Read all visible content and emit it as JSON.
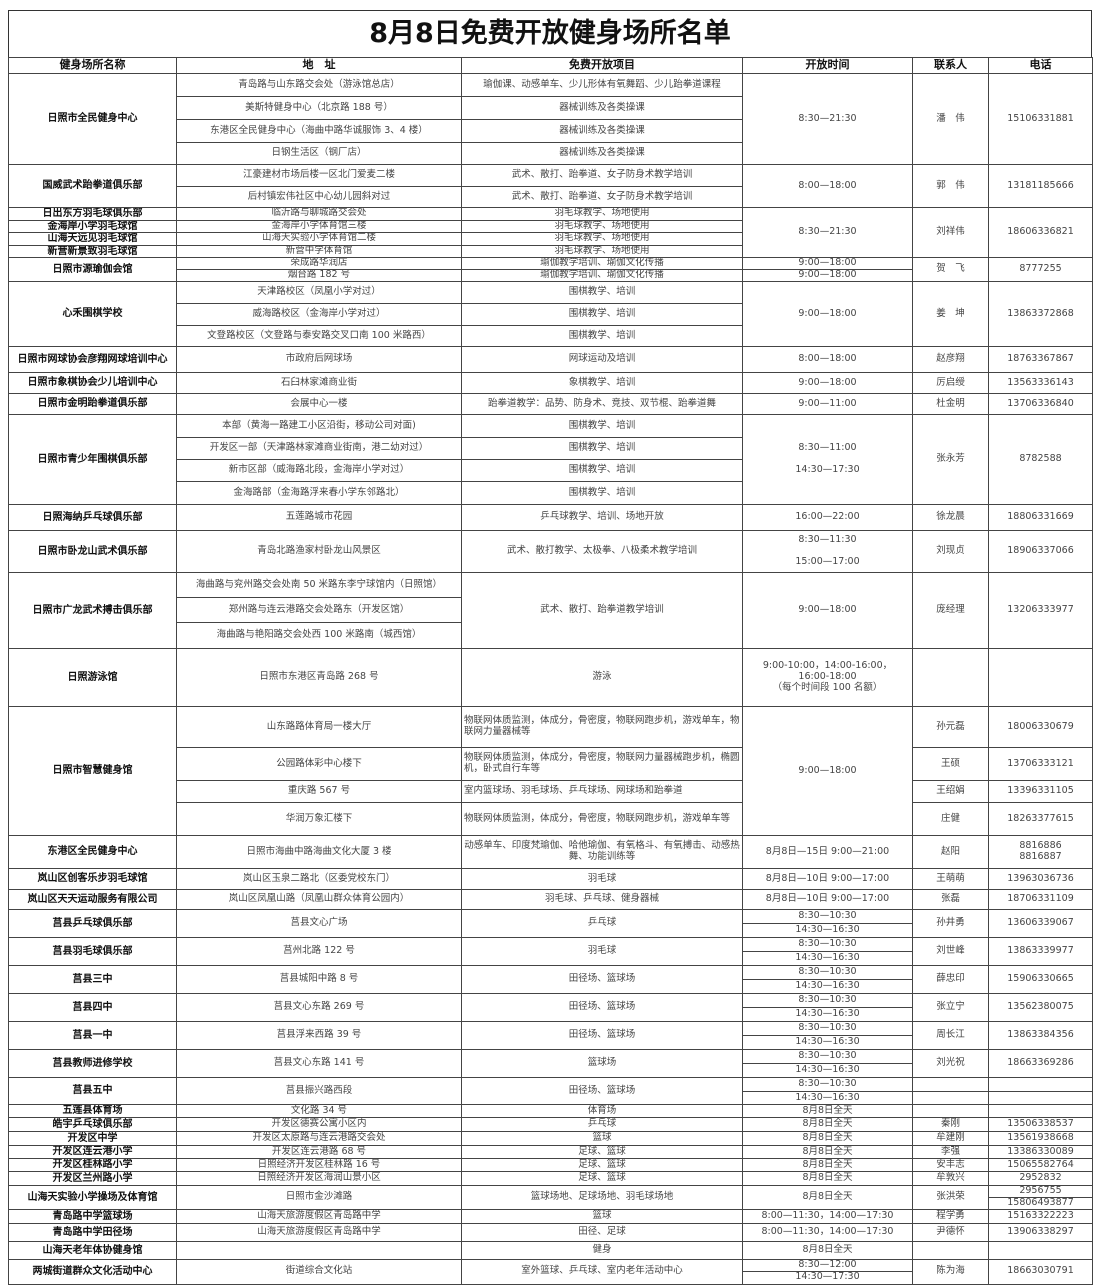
{
  "title": "8月8日免费开放健身场所名单",
  "headers": [
    "健身场所名称",
    "地　址",
    "免费开放项目",
    "开放时间",
    "联系人",
    "电话"
  ],
  "rows": [
    [
      {
        "k": "name",
        "t": "日照市全民健身中心",
        "rs": 4
      },
      {
        "k": "addr",
        "t": "青岛路与山东路交会处（游泳馆总店）"
      },
      {
        "k": "item",
        "t": "瑜伽课、动感单车、少儿形体有氧舞蹈、少儿跆拳道课程"
      },
      {
        "k": "time",
        "t": "8:30—21:30",
        "rs": 4
      },
      {
        "k": "contact",
        "t": "潘　伟",
        "rs": 4
      },
      {
        "k": "phone",
        "t": "15106331881",
        "rs": 4
      }
    ],
    [
      {
        "k": "addr",
        "t": "美斯特健身中心（北京路 188 号）"
      },
      {
        "k": "item",
        "t": "器械训练及各类操课"
      }
    ],
    [
      {
        "k": "addr",
        "t": "东港区全民健身中心（海曲中路华诚服饰 3、4 楼）"
      },
      {
        "k": "item",
        "t": "器械训练及各类操课"
      }
    ],
    [
      {
        "k": "addr",
        "t": "日钢生活区（钢厂店）"
      },
      {
        "k": "item",
        "t": "器械训练及各类操课"
      }
    ],
    [
      {
        "k": "name",
        "t": "国威武术跆拳道俱乐部",
        "rs": 2
      },
      {
        "k": "addr",
        "t": "江豪建材市场后楼一区北门爱麦二楼"
      },
      {
        "k": "item",
        "t": "武术、散打、跆拳道、女子防身术教学培训"
      },
      {
        "k": "time",
        "t": "8:00—18:00",
        "rs": 2
      },
      {
        "k": "contact",
        "t": "郭　伟",
        "rs": 2
      },
      {
        "k": "phone",
        "t": "13181185666",
        "rs": 2
      }
    ],
    [
      {
        "k": "addr",
        "t": "后村镇宏伟社区中心幼儿园斜对过"
      },
      {
        "k": "item",
        "t": "武术、散打、跆拳道、女子防身术教学培训"
      }
    ],
    [
      {
        "k": "name",
        "t": "日出东方羽毛球俱乐部"
      },
      {
        "k": "addr",
        "t": "临沂路与聊城路交会处"
      },
      {
        "k": "item",
        "t": "羽毛球教学、场地使用"
      },
      {
        "k": "time",
        "t": "8:30—21:30",
        "rs": 4
      },
      {
        "k": "contact",
        "t": "刘祥伟",
        "rs": 4
      },
      {
        "k": "phone",
        "t": "18606336821",
        "rs": 4
      }
    ],
    [
      {
        "k": "name",
        "t": "金海岸小学羽毛球馆"
      },
      {
        "k": "addr",
        "t": "金海岸小学体育馆三楼"
      },
      {
        "k": "item",
        "t": "羽毛球教学、场地使用"
      }
    ],
    [
      {
        "k": "name",
        "t": "山海天远见羽毛球馆"
      },
      {
        "k": "addr",
        "t": "山海天实验小学体育馆二楼"
      },
      {
        "k": "item",
        "t": "羽毛球教学、场地使用"
      }
    ],
    [
      {
        "k": "name",
        "t": "新营新景致羽毛球馆"
      },
      {
        "k": "addr",
        "t": "新营中学体育馆"
      },
      {
        "k": "item",
        "t": "羽毛球教学、场地使用"
      }
    ],
    [
      {
        "k": "name",
        "t": "日照市源瑜伽会馆",
        "rs": 2
      },
      {
        "k": "addr",
        "t": "荣成路华润店"
      },
      {
        "k": "item",
        "t": "瑜伽教学培训、瑜伽文化传播"
      },
      {
        "k": "time",
        "t": "9:00—18:00"
      },
      {
        "k": "contact",
        "t": "贺　飞",
        "rs": 2
      },
      {
        "k": "phone",
        "t": "8777255",
        "rs": 2
      }
    ],
    [
      {
        "k": "addr",
        "t": "烟台路 182 号"
      },
      {
        "k": "item",
        "t": "瑜伽教学培训、瑜伽文化传播"
      },
      {
        "k": "time",
        "t": "9:00—18:00"
      }
    ],
    [
      {
        "k": "name",
        "t": "心禾围棋学校",
        "rs": 3
      },
      {
        "k": "addr",
        "t": "天津路校区（凤凰小学对过）"
      },
      {
        "k": "item",
        "t": "围棋教学、培训"
      },
      {
        "k": "time",
        "t": "9:00—18:00",
        "rs": 3
      },
      {
        "k": "contact",
        "t": "姜　坤",
        "rs": 3
      },
      {
        "k": "phone",
        "t": "13863372868",
        "rs": 3
      }
    ],
    [
      {
        "k": "addr",
        "t": "威海路校区（金海岸小学对过）"
      },
      {
        "k": "item",
        "t": "围棋教学、培训"
      }
    ],
    [
      {
        "k": "addr",
        "t": "文登路校区（文登路与泰安路交叉口南 100 米路西）"
      },
      {
        "k": "item",
        "t": "围棋教学、培训"
      }
    ],
    [
      {
        "k": "name",
        "t": "日照市网球协会彦翔网球培训中心"
      },
      {
        "k": "addr",
        "t": "市政府后网球场"
      },
      {
        "k": "item",
        "t": "网球运动及培训"
      },
      {
        "k": "time",
        "t": "8:00—18:00"
      },
      {
        "k": "contact",
        "t": "赵彦翔"
      },
      {
        "k": "phone",
        "t": "18763367867"
      }
    ],
    [
      {
        "k": "name",
        "t": "日照市象棋协会少儿培训中心"
      },
      {
        "k": "addr",
        "t": "石臼林家滩商业街"
      },
      {
        "k": "item",
        "t": "象棋教学、培训"
      },
      {
        "k": "time",
        "t": "9:00—18:00"
      },
      {
        "k": "contact",
        "t": "厉启绶"
      },
      {
        "k": "phone",
        "t": "13563336143"
      }
    ],
    [
      {
        "k": "name",
        "t": "日照市金明跆拳道俱乐部"
      },
      {
        "k": "addr",
        "t": "会展中心一楼"
      },
      {
        "k": "item",
        "t": "跆拳道教学：品势、防身术、竞技、双节棍、跆拳道舞"
      },
      {
        "k": "time",
        "t": "9:00—11:00"
      },
      {
        "k": "contact",
        "t": "杜金明"
      },
      {
        "k": "phone",
        "t": "13706336840"
      }
    ],
    [
      {
        "k": "name",
        "t": "日照市青少年围棋俱乐部",
        "rs": 4
      },
      {
        "k": "addr",
        "t": "本部（黄海一路建工小区沿街，移动公司对面)"
      },
      {
        "k": "item",
        "t": "围棋教学、培训"
      },
      {
        "k": "time",
        "t": "8:30—11:00\n\n14:30—17:30",
        "rs": 4
      },
      {
        "k": "contact",
        "t": "张永芳",
        "rs": 4
      },
      {
        "k": "phone",
        "t": "8782588",
        "rs": 4
      }
    ],
    [
      {
        "k": "addr",
        "t": "开发区一部（天津路林家滩商业街南，港二幼对过）"
      },
      {
        "k": "item",
        "t": "围棋教学、培训"
      }
    ],
    [
      {
        "k": "addr",
        "t": "新市区部（威海路北段，金海岸小学对过）"
      },
      {
        "k": "item",
        "t": "围棋教学、培训"
      }
    ],
    [
      {
        "k": "addr",
        "t": "金海路部（金海路浮来春小学东邻路北）"
      },
      {
        "k": "item",
        "t": "围棋教学、培训"
      }
    ],
    [
      {
        "k": "name",
        "t": "日照海纳乒乓球俱乐部"
      },
      {
        "k": "addr",
        "t": "五莲路城市花园"
      },
      {
        "k": "item",
        "t": "乒乓球教学、培训、场地开放"
      },
      {
        "k": "time",
        "t": "16:00—22:00"
      },
      {
        "k": "contact",
        "t": "徐龙晨"
      },
      {
        "k": "phone",
        "t": "18806331669"
      }
    ],
    [
      {
        "k": "name",
        "t": "日照市卧龙山武术俱乐部"
      },
      {
        "k": "addr",
        "t": "青岛北路渔家村卧龙山风景区"
      },
      {
        "k": "item",
        "t": "武术、散打教学、太极拳、八极柔术教学培训"
      },
      {
        "k": "time",
        "t": "8:30—11:30\n\n15:00—17:00"
      },
      {
        "k": "contact",
        "t": "刘现贞"
      },
      {
        "k": "phone",
        "t": "18906337066"
      }
    ],
    [
      {
        "k": "name",
        "t": "日照市广龙武术搏击俱乐部",
        "rs": 3
      },
      {
        "k": "addr",
        "t": "海曲路与兖州路交会处南 50 米路东李宁球馆内（日照馆）"
      },
      {
        "k": "item",
        "t": "武术、散打、跆拳道教学培训",
        "rs": 3
      },
      {
        "k": "time",
        "t": "9:00—18:00",
        "rs": 3
      },
      {
        "k": "contact",
        "t": "庞经理",
        "rs": 3
      },
      {
        "k": "phone",
        "t": "13206333977",
        "rs": 3
      }
    ],
    [
      {
        "k": "addr",
        "t": "郑州路与连云港路交会处路东（开发区馆）"
      }
    ],
    [
      {
        "k": "addr",
        "t": "海曲路与艳阳路交会处西 100 米路南（城西馆）"
      }
    ],
    [
      {
        "k": "name",
        "t": "日照游泳馆"
      },
      {
        "k": "addr",
        "t": "日照市东港区青岛路 268 号"
      },
      {
        "k": "item",
        "t": "游泳"
      },
      {
        "k": "time",
        "t": "9:00-10:00，14:00-16:00，\n16:00-18:00\n（每个时间段 100 名额）"
      },
      {
        "k": "contact",
        "t": ""
      },
      {
        "k": "phone",
        "t": ""
      }
    ],
    [
      {
        "k": "name",
        "t": "日照市智慧健身馆",
        "rs": 4
      },
      {
        "k": "addr",
        "t": "山东路路体育局一楼大厅"
      },
      {
        "k": "item",
        "t": "物联网体质监测，体成分，骨密度，物联网跑步机，游戏单车，物联网力量器械等",
        "long": true
      },
      {
        "k": "time",
        "t": "9:00—18:00",
        "rs": 4
      },
      {
        "k": "contact",
        "t": "孙元磊"
      },
      {
        "k": "phone",
        "t": "18006330679"
      }
    ],
    [
      {
        "k": "addr",
        "t": "公园路体彩中心楼下"
      },
      {
        "k": "item",
        "t": "物联网体质监测，体成分，骨密度，物联网力量器械跑步机，椭圆机，卧式自行车等",
        "long": true
      },
      {
        "k": "contact",
        "t": "王硕"
      },
      {
        "k": "phone",
        "t": "13706333121"
      }
    ],
    [
      {
        "k": "addr",
        "t": "重庆路 567 号"
      },
      {
        "k": "item",
        "t": "室内篮球场、羽毛球场、乒乓球场、网球场和跆拳道",
        "long": true
      },
      {
        "k": "contact",
        "t": "王绍娟"
      },
      {
        "k": "phone",
        "t": "13396331105"
      }
    ],
    [
      {
        "k": "addr",
        "t": "华润万象汇楼下"
      },
      {
        "k": "item",
        "t": "物联网体质监测，体成分，骨密度，物联网跑步机，游戏单车等",
        "long": true
      },
      {
        "k": "contact",
        "t": "庄健"
      },
      {
        "k": "phone",
        "t": "18263377615"
      }
    ],
    [
      {
        "k": "name",
        "t": "东港区全民健身中心"
      },
      {
        "k": "addr",
        "t": "日照市海曲中路海曲文化大厦 3 楼"
      },
      {
        "k": "item",
        "t": "动感单车、印度梵瑜伽、哈他瑜伽、有氧格斗、有氧搏击、动感热舞、功能训练等"
      },
      {
        "k": "time",
        "t": "8月8日—15日 9:00—21:00"
      },
      {
        "k": "contact",
        "t": "赵阳"
      },
      {
        "k": "phone",
        "t": "8816886\n8816887"
      }
    ],
    [
      {
        "k": "name",
        "t": "岚山区创客乐步羽毛球馆"
      },
      {
        "k": "addr",
        "t": "岚山区玉泉二路北（区委党校东门）"
      },
      {
        "k": "item",
        "t": "羽毛球"
      },
      {
        "k": "time",
        "t": "8月8日—10日 9:00—17:00"
      },
      {
        "k": "contact",
        "t": "王萌萌"
      },
      {
        "k": "phone",
        "t": "13963036736"
      }
    ],
    [
      {
        "k": "name",
        "t": "岚山区天天运动服务有限公司"
      },
      {
        "k": "addr",
        "t": "岚山区凤凰山路（凤凰山群众体育公园内）"
      },
      {
        "k": "item",
        "t": "羽毛球、乒乓球、健身器械"
      },
      {
        "k": "time",
        "t": "8月8日—10日 9:00—17:00"
      },
      {
        "k": "contact",
        "t": "张磊"
      },
      {
        "k": "phone",
        "t": "18706331109"
      }
    ],
    [
      {
        "k": "name",
        "t": "莒县乒乓球俱乐部",
        "rs": 2
      },
      {
        "k": "addr",
        "t": "莒县文心广场",
        "rs": 2
      },
      {
        "k": "item",
        "t": "乒乓球",
        "rs": 2
      },
      {
        "k": "time",
        "t": "8:30—10:30"
      },
      {
        "k": "contact",
        "t": "孙井勇",
        "rs": 2
      },
      {
        "k": "phone",
        "t": "13606339067",
        "rs": 2
      }
    ],
    [
      {
        "k": "time",
        "t": "14:30—16:30"
      }
    ],
    [
      {
        "k": "name",
        "t": "莒县羽毛球俱乐部",
        "rs": 2
      },
      {
        "k": "addr",
        "t": "莒州北路 122 号",
        "rs": 2
      },
      {
        "k": "item",
        "t": "羽毛球",
        "rs": 2
      },
      {
        "k": "time",
        "t": "8:30—10:30"
      },
      {
        "k": "contact",
        "t": "刘世峰",
        "rs": 2
      },
      {
        "k": "phone",
        "t": "13863339977",
        "rs": 2
      }
    ],
    [
      {
        "k": "time",
        "t": "14:30—16:30"
      }
    ],
    [
      {
        "k": "name",
        "t": "莒县三中",
        "rs": 2
      },
      {
        "k": "addr",
        "t": "莒县城阳中路 8 号",
        "rs": 2
      },
      {
        "k": "item",
        "t": "田径场、篮球场",
        "rs": 2
      },
      {
        "k": "time",
        "t": "8:30—10:30"
      },
      {
        "k": "contact",
        "t": "薛忠印",
        "rs": 2
      },
      {
        "k": "phone",
        "t": "15906330665",
        "rs": 2
      }
    ],
    [
      {
        "k": "time",
        "t": "14:30—16:30"
      }
    ],
    [
      {
        "k": "name",
        "t": "莒县四中",
        "rs": 2
      },
      {
        "k": "addr",
        "t": "莒县文心东路 269 号",
        "rs": 2
      },
      {
        "k": "item",
        "t": "田径场、篮球场",
        "rs": 2
      },
      {
        "k": "time",
        "t": "8:30—10:30"
      },
      {
        "k": "contact",
        "t": "张立宁",
        "rs": 2
      },
      {
        "k": "phone",
        "t": "13562380075",
        "rs": 2
      }
    ],
    [
      {
        "k": "time",
        "t": "14:30—16:30"
      }
    ],
    [
      {
        "k": "name",
        "t": "莒县一中",
        "rs": 2
      },
      {
        "k": "addr",
        "t": "莒县浮来西路 39 号",
        "rs": 2
      },
      {
        "k": "item",
        "t": "田径场、篮球场",
        "rs": 2
      },
      {
        "k": "time",
        "t": "8:30—10:30"
      },
      {
        "k": "contact",
        "t": "周长江",
        "rs": 2
      },
      {
        "k": "phone",
        "t": "13863384356",
        "rs": 2
      }
    ],
    [
      {
        "k": "time",
        "t": "14:30—16:30"
      }
    ],
    [
      {
        "k": "name",
        "t": "莒县教师进修学校",
        "rs": 2
      },
      {
        "k": "addr",
        "t": "莒县文心东路 141 号",
        "rs": 2
      },
      {
        "k": "item",
        "t": "篮球场",
        "rs": 2
      },
      {
        "k": "time",
        "t": "8:30—10:30"
      },
      {
        "k": "contact",
        "t": "刘光祝",
        "rs": 2
      },
      {
        "k": "phone",
        "t": "18663369286",
        "rs": 2
      }
    ],
    [
      {
        "k": "time",
        "t": "14:30—16:30"
      }
    ],
    [
      {
        "k": "name",
        "t": "莒县五中",
        "rs": 2
      },
      {
        "k": "addr",
        "t": "莒县振兴路西段",
        "rs": 2
      },
      {
        "k": "item",
        "t": "田径场、篮球场",
        "rs": 2
      },
      {
        "k": "time",
        "t": "8:30—10:30"
      },
      {
        "k": "contact",
        "t": ""
      },
      {
        "k": "phone",
        "t": ""
      }
    ],
    [
      {
        "k": "time",
        "t": "14:30—16:30"
      },
      {
        "k": "contact",
        "t": ""
      },
      {
        "k": "phone",
        "t": ""
      }
    ],
    [
      {
        "k": "name",
        "t": "五莲县体育场"
      },
      {
        "k": "addr",
        "t": "文化路 34 号"
      },
      {
        "k": "item",
        "t": "体育场"
      },
      {
        "k": "time",
        "t": "8月8日全天"
      },
      {
        "k": "contact",
        "t": ""
      },
      {
        "k": "phone",
        "t": ""
      }
    ],
    [
      {
        "k": "name",
        "t": "皓宇乒乓球俱乐部"
      },
      {
        "k": "addr",
        "t": "开发区德赛公寓小区内"
      },
      {
        "k": "item",
        "t": "乒乓球"
      },
      {
        "k": "time",
        "t": "8月8日全天"
      },
      {
        "k": "contact",
        "t": "秦刚"
      },
      {
        "k": "phone",
        "t": "13506338537"
      }
    ],
    [
      {
        "k": "name",
        "t": "开发区中学"
      },
      {
        "k": "addr",
        "t": "开发区太原路与连云港路交会处"
      },
      {
        "k": "item",
        "t": "篮球"
      },
      {
        "k": "time",
        "t": "8月8日全天"
      },
      {
        "k": "contact",
        "t": "牟建刚"
      },
      {
        "k": "phone",
        "t": "13561938668"
      }
    ],
    [
      {
        "k": "name",
        "t": "开发区连云港小学"
      },
      {
        "k": "addr",
        "t": "开发区连云港路 68 号"
      },
      {
        "k": "item",
        "t": "足球、篮球"
      },
      {
        "k": "time",
        "t": "8月8日全天"
      },
      {
        "k": "contact",
        "t": "李强"
      },
      {
        "k": "phone",
        "t": "13386330089"
      }
    ],
    [
      {
        "k": "name",
        "t": "开发区桂林路小学"
      },
      {
        "k": "addr",
        "t": "日照经济开发区桂林路 16 号"
      },
      {
        "k": "item",
        "t": "足球、篮球"
      },
      {
        "k": "time",
        "t": "8月8日全天"
      },
      {
        "k": "contact",
        "t": "安丰志"
      },
      {
        "k": "phone",
        "t": "15065582764"
      }
    ],
    [
      {
        "k": "name",
        "t": "开发区兰州路小学"
      },
      {
        "k": "addr",
        "t": "日照经济开发区海润山景小区"
      },
      {
        "k": "item",
        "t": "足球、篮球"
      },
      {
        "k": "time",
        "t": "8月8日全天"
      },
      {
        "k": "contact",
        "t": "牟敦兴"
      },
      {
        "k": "phone",
        "t": "2952832"
      }
    ],
    [
      {
        "k": "name",
        "t": "山海天实验小学操场及体育馆",
        "rs": 2
      },
      {
        "k": "addr",
        "t": "日照市金沙滩路",
        "rs": 2
      },
      {
        "k": "item",
        "t": "篮球场地、足球场地、羽毛球场地",
        "rs": 2
      },
      {
        "k": "time",
        "t": "8月8日全天",
        "rs": 2
      },
      {
        "k": "contact",
        "t": "张洪荣",
        "rs": 2
      },
      {
        "k": "phone",
        "t": "2956755"
      }
    ],
    [
      {
        "k": "phone",
        "t": "15806493877"
      }
    ],
    [
      {
        "k": "name",
        "t": "青岛路中学篮球场"
      },
      {
        "k": "addr",
        "t": "山海天旅游度假区青岛路中学"
      },
      {
        "k": "item",
        "t": "篮球"
      },
      {
        "k": "time",
        "t": "8:00—11:30，14:00—17:30"
      },
      {
        "k": "contact",
        "t": "程学勇"
      },
      {
        "k": "phone",
        "t": "15163322223"
      }
    ],
    [
      {
        "k": "name",
        "t": "青岛路中学田径场"
      },
      {
        "k": "addr",
        "t": "山海天旅游度假区青岛路中学"
      },
      {
        "k": "item",
        "t": "田径、足球"
      },
      {
        "k": "time",
        "t": "8:00—11:30，14:00—17:30"
      },
      {
        "k": "contact",
        "t": "尹德怀"
      },
      {
        "k": "phone",
        "t": "13906338297"
      }
    ],
    [
      {
        "k": "name",
        "t": "山海天老年体协健身馆"
      },
      {
        "k": "addr",
        "t": ""
      },
      {
        "k": "item",
        "t": "健身"
      },
      {
        "k": "time",
        "t": "8月8日全天"
      },
      {
        "k": "contact",
        "t": ""
      },
      {
        "k": "phone",
        "t": ""
      }
    ],
    [
      {
        "k": "name",
        "t": "两城街道群众文化活动中心",
        "rs": 2
      },
      {
        "k": "addr",
        "t": "街道综合文化站",
        "rs": 2
      },
      {
        "k": "item",
        "t": "室外篮球、乒乓球、室内老年活动中心",
        "rs": 2
      },
      {
        "k": "time",
        "t": "8:30—12:00"
      },
      {
        "k": "contact",
        "t": "陈为海",
        "rs": 2
      },
      {
        "k": "phone",
        "t": "18663030791",
        "rs": 2
      }
    ],
    [
      {
        "k": "time",
        "t": "14:30—17:30"
      }
    ]
  ]
}
